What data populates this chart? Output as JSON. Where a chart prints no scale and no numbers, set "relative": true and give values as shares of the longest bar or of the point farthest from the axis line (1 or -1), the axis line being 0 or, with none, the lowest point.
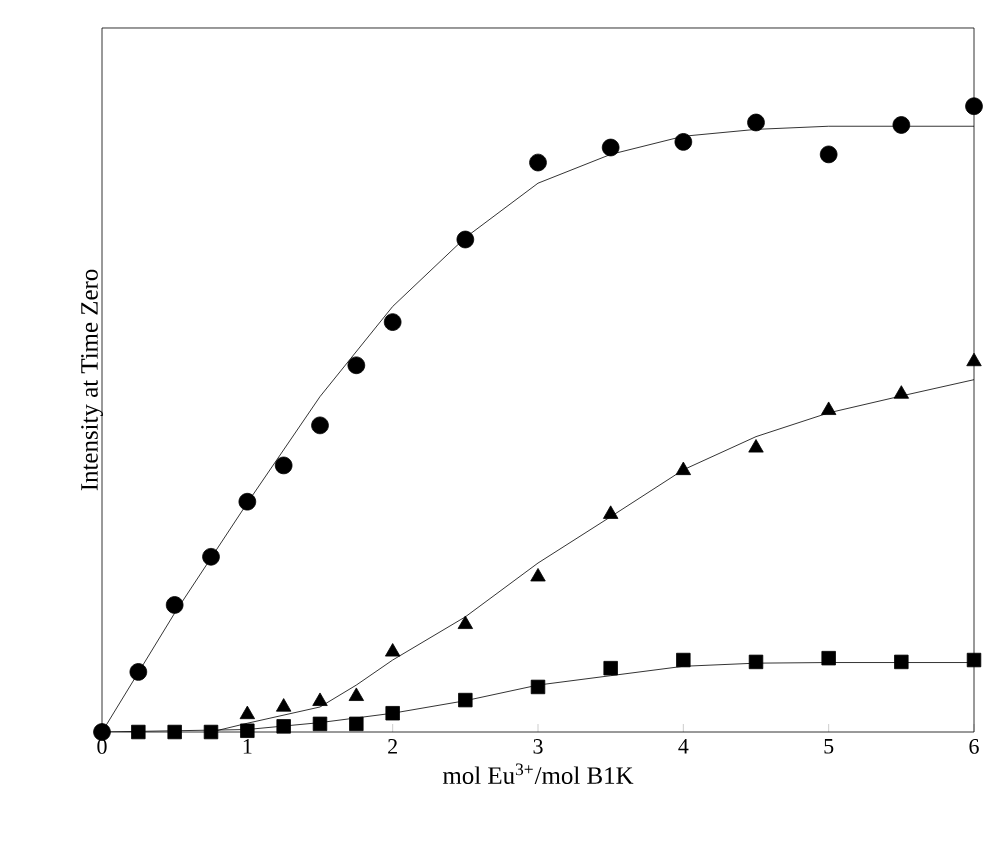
{
  "chart_data": {
    "type": "scatter",
    "xlabel": "mol Eu$^{3+}$/mol B1K",
    "ylabel": "Intensity at Time Zero",
    "relative": true,
    "xlim": [
      0,
      6
    ],
    "xticks": [
      0,
      1,
      2,
      3,
      4,
      5,
      6
    ],
    "grid": false,
    "series": [
      {
        "marker": "circle",
        "color": "#000000",
        "x": [
          0,
          0.25,
          0.5,
          0.75,
          1,
          1.25,
          1.5,
          1.75,
          2,
          2.5,
          3,
          3.5,
          4,
          4.5,
          5,
          5.5,
          6
        ],
        "values": [
          0,
          0.096,
          0.203,
          0.28,
          0.368,
          0.426,
          0.49,
          0.586,
          0.655,
          0.787,
          0.91,
          0.934,
          0.943,
          0.974,
          0.923,
          0.97,
          1
        ]
      },
      {
        "marker": "triangle",
        "color": "#000000",
        "x": [
          1,
          1.25,
          1.5,
          1.75,
          2,
          2.5,
          3,
          3.5,
          4,
          4.5,
          5,
          5.5,
          6
        ],
        "values": [
          0.028,
          0.04,
          0.049,
          0.057,
          0.128,
          0.172,
          0.248,
          0.348,
          0.418,
          0.454,
          0.514,
          0.54,
          0.592
        ]
      },
      {
        "marker": "square",
        "color": "#000000",
        "x": [
          0.25,
          0.5,
          0.75,
          1,
          1.25,
          1.5,
          1.75,
          2,
          2.5,
          3,
          3.5,
          4,
          4.5,
          5,
          5.5,
          6
        ],
        "values": [
          0,
          0,
          0,
          0.002,
          0.009,
          0.013,
          0.013,
          0.03,
          0.051,
          0.072,
          0.102,
          0.115,
          0.112,
          0.118,
          0.112,
          0.115
        ]
      },
      {
        "type": "line",
        "marker": "none",
        "color": "#000000",
        "x": [
          0,
          0.5,
          1,
          1.5,
          2,
          2.5,
          3,
          3.5,
          4,
          4.5,
          5,
          5.5,
          6
        ],
        "values": [
          0,
          0.19,
          0.366,
          0.536,
          0.68,
          0.79,
          0.877,
          0.923,
          0.952,
          0.963,
          0.968,
          0.968,
          0.968
        ]
      },
      {
        "type": "line",
        "marker": "none",
        "color": "#000000",
        "x": [
          0.75,
          1,
          1.5,
          1.75,
          2,
          2.5,
          3,
          3.5,
          4,
          4.5,
          5,
          5.5,
          6
        ],
        "values": [
          0,
          0.014,
          0.04,
          0.075,
          0.115,
          0.184,
          0.27,
          0.344,
          0.419,
          0.472,
          0.51,
          0.537,
          0.563
        ]
      },
      {
        "type": "line",
        "marker": "none",
        "color": "#000000",
        "x": [
          0,
          1,
          1.5,
          2,
          2.5,
          3,
          3.5,
          4,
          4.5,
          5,
          6
        ],
        "values": [
          0,
          0.004,
          0.015,
          0.03,
          0.05,
          0.075,
          0.09,
          0.105,
          0.11,
          0.111,
          0.111
        ]
      }
    ]
  }
}
